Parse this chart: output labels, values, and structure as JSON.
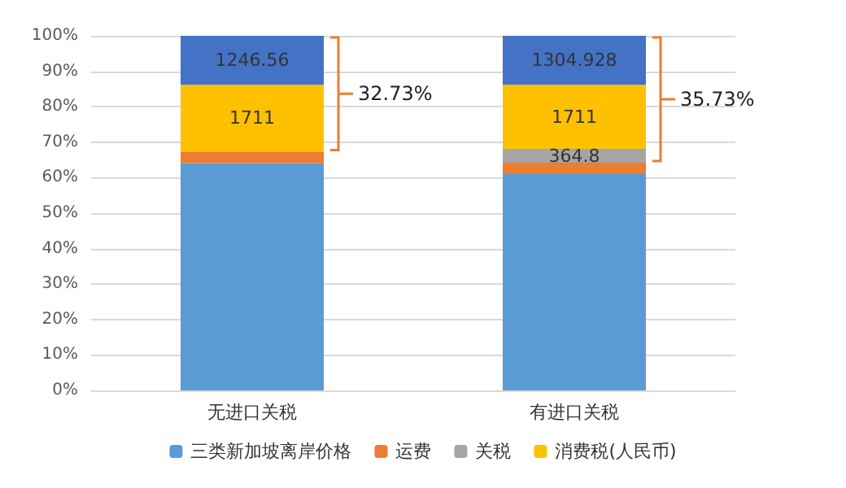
{
  "chart_data": {
    "type": "bar",
    "stacked": true,
    "categories": [
      "无进口关税",
      "有进口关税"
    ],
    "series": [
      {
        "name": "三类新加坡离岸价格",
        "color": "#5b9bd5",
        "values": [
          64.1,
          61.0
        ]
      },
      {
        "name": "运费",
        "color": "#ed7d31",
        "values": [
          3.2,
          3.2
        ]
      },
      {
        "name": "关税",
        "color": "#a5a5a5",
        "values": [
          null,
          3.9
        ]
      },
      {
        "name": "消费税(人民币)",
        "color": "#ffc000",
        "values": [
          18.9,
          18.1
        ]
      },
      {
        "color": "#4472c4",
        "values": [
          13.8,
          13.8
        ]
      }
    ],
    "ylim": [
      0,
      100
    ],
    "yticks": [
      {
        "value": 0,
        "label": "0%"
      },
      {
        "value": 10,
        "label": "10%"
      },
      {
        "value": 20,
        "label": "20%"
      },
      {
        "value": 30,
        "label": "30%"
      },
      {
        "value": 40,
        "label": "40%"
      },
      {
        "value": 50,
        "label": "50%"
      },
      {
        "value": 60,
        "label": "60%"
      },
      {
        "value": 70,
        "label": "70%"
      },
      {
        "value": 80,
        "label": "80%"
      },
      {
        "value": 90,
        "label": "90%"
      },
      {
        "value": 100,
        "label": "100%"
      }
    ],
    "grid": "y",
    "legend": "bottom",
    "annotations": [
      "32.73%",
      "35.73%",
      "1246.56",
      "1711",
      "1304.928",
      "1711",
      "364.8"
    ]
  }
}
